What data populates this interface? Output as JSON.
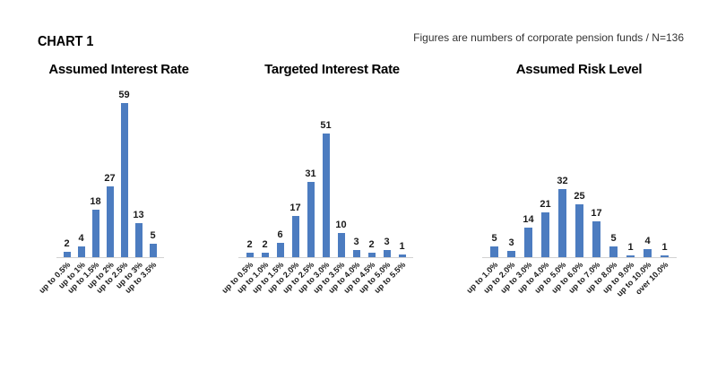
{
  "page": {
    "title": "CHART 1",
    "note": "Figures are numbers of corporate pension funds / N=136"
  },
  "colors": {
    "bar": "#4C7CC0",
    "axis": "#D2D2D2",
    "text": "#1A1A1A",
    "note_text": "#333333"
  },
  "chart_data": [
    {
      "type": "bar",
      "title": "Assumed Interest Rate",
      "categories": [
        "up to 0.5%",
        "up to 1%",
        "up to 1.5%",
        "up to 2%",
        "up to 2.5%",
        "up to 3%",
        "up to 3.5%"
      ],
      "values": [
        2,
        4,
        18,
        27,
        59,
        13,
        5
      ],
      "ylim": [
        0,
        65
      ],
      "data_labels": true,
      "grid": false,
      "legend": "none"
    },
    {
      "type": "bar",
      "title": "Targeted Interest Rate",
      "categories": [
        "up to 0.5%",
        "up to 1.0%",
        "up to 1.5%",
        "up to 2.0%",
        "up to 2.5%",
        "up to 3.0%",
        "up to 3.5%",
        "up to 4.0%",
        "up to 4.5%",
        "up to 5.0%",
        "up to 5.5%"
      ],
      "values": [
        2,
        2,
        6,
        17,
        31,
        51,
        10,
        3,
        2,
        3,
        1
      ],
      "ylim": [
        0,
        70
      ],
      "data_labels": true,
      "grid": false,
      "legend": "none"
    },
    {
      "type": "bar",
      "title": "Assumed Risk Level",
      "categories": [
        "up to 1.0%",
        "up to 2.0%",
        "up to 3.0%",
        "up to 4.0%",
        "up to 5.0%",
        "up to 6.0%",
        "up to 7.0%",
        "up to 8.0%",
        "up to 9.0%",
        "up to 10.0%",
        "over 10.0%"
      ],
      "values": [
        5,
        3,
        14,
        21,
        32,
        25,
        17,
        5,
        1,
        4,
        1
      ],
      "ylim": [
        0,
        80
      ],
      "data_labels": true,
      "grid": false,
      "legend": "none"
    }
  ]
}
